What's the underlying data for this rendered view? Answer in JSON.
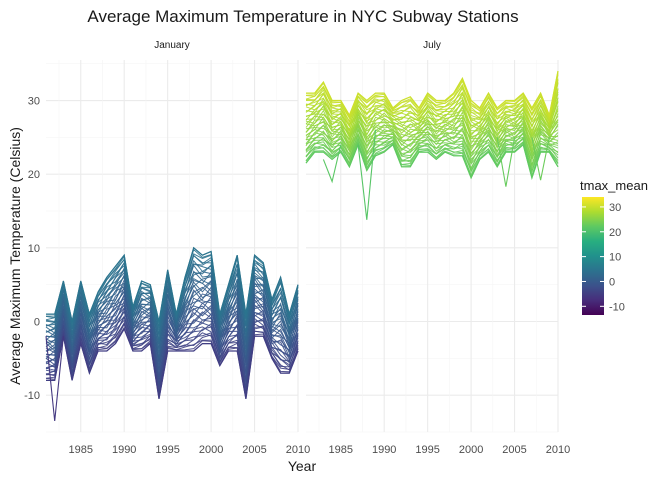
{
  "chart_data": {
    "type": "line",
    "title": "Average Maximum Temperature in NYC Subway Stations",
    "xlabel": "Year",
    "ylabel": "Average Maximum Temperature (Celsius)",
    "xlim": [
      1981,
      2010
    ],
    "ylim": [
      -15,
      35.5
    ],
    "x_ticks": [
      1985,
      1990,
      1995,
      2000,
      2005,
      2010
    ],
    "y_ticks": [
      -10,
      0,
      10,
      20,
      30
    ],
    "grid": true,
    "legend": {
      "title": "tmax_mean",
      "placement": "right",
      "scale": "viridis",
      "range": [
        -13.5,
        34
      ],
      "ticks": [
        30,
        20,
        10,
        0,
        -10
      ]
    },
    "panels": [
      {
        "name": "January",
        "envelope": {
          "years": [
            1981,
            1982,
            1983,
            1984,
            1985,
            1986,
            1987,
            1988,
            1989,
            1990,
            1991,
            1992,
            1993,
            1994,
            1995,
            1996,
            1997,
            1998,
            1999,
            2000,
            2001,
            2002,
            2003,
            2004,
            2005,
            2006,
            2007,
            2008,
            2009,
            2010
          ],
          "low": [
            -8,
            -8,
            -2,
            -8,
            -3,
            -7,
            -4,
            -4,
            -3,
            -1,
            -4,
            -4,
            -3,
            -10.5,
            -4,
            -4,
            -4,
            -4,
            -3,
            -3,
            -6,
            -4,
            -4,
            -10.5,
            -2,
            -2,
            -5,
            -7,
            -7,
            -4
          ],
          "high": [
            1,
            1,
            5.5,
            0,
            5.5,
            1,
            4,
            6,
            7.5,
            9,
            2,
            5.5,
            5,
            0,
            7,
            1,
            6,
            10,
            9,
            9.5,
            1,
            5,
            9,
            1,
            9,
            8,
            3,
            6,
            1,
            5
          ]
        },
        "outliers": [
          {
            "name": "low-outlier",
            "years": [
              1981,
              1982,
              1983
            ],
            "values": [
              -2,
              -13.5,
              -2
            ]
          }
        ]
      },
      {
        "name": "July",
        "envelope": {
          "years": [
            1981,
            1982,
            1983,
            1984,
            1985,
            1986,
            1987,
            1988,
            1989,
            1990,
            1991,
            1992,
            1993,
            1994,
            1995,
            1996,
            1997,
            1998,
            1999,
            2000,
            2001,
            2002,
            2003,
            2004,
            2005,
            2006,
            2007,
            2008,
            2009,
            2010
          ],
          "low": [
            21.5,
            23,
            23,
            22,
            23,
            21,
            24,
            20.5,
            22.5,
            23,
            24,
            21,
            21,
            23,
            23,
            22,
            23,
            22.5,
            22.5,
            19.5,
            22,
            23,
            21,
            23,
            23,
            24,
            19.5,
            23,
            23,
            21
          ],
          "high": [
            31,
            31,
            32.5,
            30,
            30,
            28,
            31,
            30,
            31,
            31,
            29,
            30,
            30.5,
            29,
            31,
            30,
            30,
            31,
            33,
            30,
            29,
            31,
            29,
            30,
            30,
            31,
            29,
            31,
            28,
            34
          ]
        },
        "outliers": [
          {
            "name": "low-outlier-1988",
            "years": [
              1987,
              1988,
              1989
            ],
            "values": [
              24,
              13.8,
              26
            ]
          },
          {
            "name": "low-outlier-1984",
            "years": [
              1983,
              1984,
              1985
            ],
            "values": [
              22,
              19,
              24
            ]
          },
          {
            "name": "low-outlier-2004",
            "years": [
              2003,
              2004,
              2005
            ],
            "values": [
              25,
              18.3,
              25
            ]
          },
          {
            "name": "low-outlier-2008",
            "years": [
              2007,
              2008,
              2009
            ],
            "values": [
              25,
              19.2,
              25
            ]
          }
        ]
      }
    ]
  }
}
